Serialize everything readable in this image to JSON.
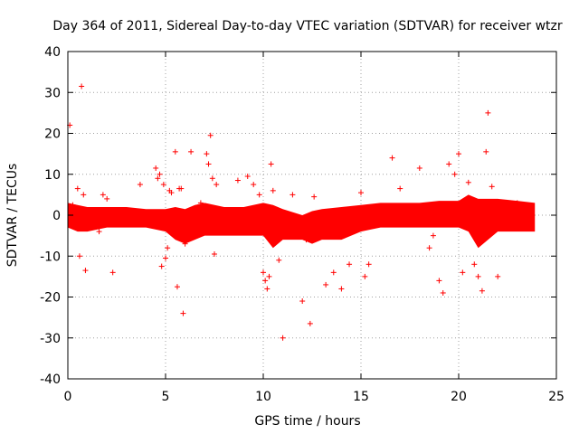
{
  "chart_data": {
    "type": "scatter",
    "title": "Day 364 of 2011, Sidereal Day-to-day VTEC variation (SDTVAR) for receiver wtzr",
    "xlabel": "GPS time / hours",
    "ylabel": "SDTVAR / TECUs",
    "xlim": [
      0,
      25
    ],
    "ylim": [
      -40,
      40
    ],
    "xticks": [
      0,
      5,
      10,
      15,
      20,
      25
    ],
    "yticks": [
      -40,
      -30,
      -20,
      -10,
      0,
      10,
      20,
      30,
      40
    ],
    "grid": true,
    "marker": "+",
    "color": "#ff0000",
    "dense_band": {
      "x": [
        0.0,
        0.5,
        1.0,
        2.0,
        3.0,
        4.0,
        5.0,
        5.5,
        6.0,
        6.5,
        7.0,
        8.0,
        9.0,
        10.0,
        10.5,
        11.0,
        12.0,
        12.5,
        13.0,
        14.0,
        15.0,
        16.0,
        17.0,
        18.0,
        19.0,
        20.0,
        20.5,
        21.0,
        22.0,
        23.0,
        23.9
      ],
      "upper": [
        3,
        2.5,
        2,
        2,
        2,
        1.5,
        1.5,
        2,
        1.5,
        2.5,
        3,
        2,
        2,
        3,
        2.5,
        1.5,
        0,
        1,
        1.5,
        2,
        2.5,
        3,
        3,
        3,
        3.5,
        3.5,
        5,
        4,
        4,
        3.5,
        3
      ],
      "lower": [
        -3,
        -4,
        -4,
        -3,
        -3,
        -3,
        -4,
        -6,
        -7,
        -6,
        -5,
        -5,
        -5,
        -5,
        -8,
        -6,
        -6,
        -7,
        -6,
        -6,
        -4,
        -3,
        -3,
        -3,
        -3,
        -3,
        -4,
        -8,
        -4,
        -4,
        -4
      ]
    },
    "outliers": {
      "x": [
        0.1,
        0.25,
        0.5,
        0.7,
        0.6,
        0.8,
        0.9,
        1.6,
        1.8,
        2.0,
        2.3,
        3.7,
        4.5,
        4.6,
        4.7,
        4.8,
        4.9,
        5.0,
        5.1,
        5.2,
        5.3,
        5.5,
        5.6,
        5.7,
        5.8,
        5.9,
        6.0,
        6.3,
        6.8,
        7.1,
        7.2,
        7.3,
        7.4,
        7.5,
        7.6,
        8.7,
        9.2,
        9.5,
        9.8,
        10.0,
        10.1,
        10.2,
        10.3,
        10.4,
        10.5,
        10.8,
        11.0,
        11.5,
        12.0,
        12.2,
        12.4,
        12.6,
        13.2,
        13.6,
        14.0,
        14.4,
        15.0,
        15.2,
        15.4,
        16.0,
        16.6,
        17.0,
        18.0,
        18.5,
        18.7,
        19.0,
        19.2,
        19.5,
        19.8,
        20.0,
        20.2,
        20.5,
        20.8,
        21.0,
        21.2,
        21.4,
        21.5,
        21.7,
        22.0,
        22.5,
        23.0
      ],
      "y": [
        22,
        2.5,
        6.5,
        31.5,
        -10,
        5,
        -13.5,
        -4,
        5,
        4,
        -14,
        7.5,
        11.5,
        9,
        10,
        -12.5,
        7.5,
        -10.5,
        -8,
        6,
        5.5,
        15.5,
        -17.5,
        6.5,
        6.5,
        -24,
        -7,
        15.5,
        3,
        15,
        12.5,
        19.5,
        9,
        -9.5,
        7.5,
        8.5,
        9.5,
        7.5,
        5,
        -14,
        -16,
        -18,
        -15,
        12.5,
        6,
        -11,
        -30,
        5,
        -21,
        -6,
        -26.5,
        4.5,
        -17,
        -14,
        -18,
        -12,
        5.5,
        -15,
        -12,
        2,
        14,
        6.5,
        11.5,
        -8,
        -5,
        -16,
        -19,
        12.5,
        10,
        15,
        -14,
        8,
        -12,
        -15,
        -18.5,
        15.5,
        25,
        7,
        -15,
        3,
        3
      ]
    }
  }
}
